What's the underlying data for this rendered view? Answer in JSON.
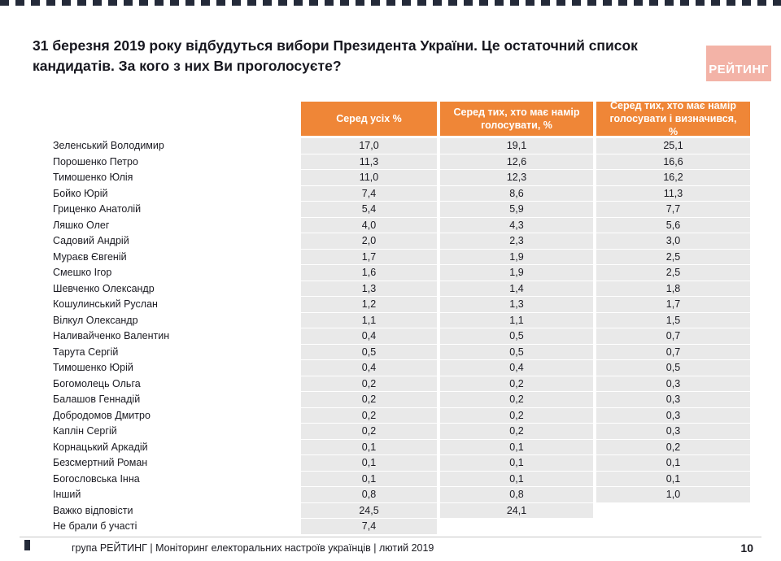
{
  "page": {
    "title": "31 березня 2019 року відбудуться вибори Президента України. Це остаточний список кандидатів. За кого з них Ви проголосуєте?",
    "logo": "РЕЙТИНГ",
    "footer_text": "група РЕЙТИНГ |  Моніторинг електоральних настроїв українців | лютий  2019",
    "page_number": "10"
  },
  "colors": {
    "accent_orange": "#ef8637",
    "logo_pink": "#f3b3a7",
    "row_gray": "#e9e9e9",
    "border_dark": "#242a39"
  },
  "chart_data": {
    "type": "table",
    "title": "31 березня 2019 року відбудуться вибори Президента України. Це остаточний список кандидатів. За кого з них Ви проголосуєте?",
    "columns": [
      "Серед усіх %",
      "Серед тих, хто має намір голосувати, %",
      "Серед тих, хто має намір голосувати і визначився, %"
    ],
    "rows": [
      {
        "name": "Зеленський Володимир",
        "values": [
          "17,0",
          "19,1",
          "25,1"
        ]
      },
      {
        "name": "Порошенко Петро",
        "values": [
          "11,3",
          "12,6",
          "16,6"
        ]
      },
      {
        "name": "Тимошенко Юлія",
        "values": [
          "11,0",
          "12,3",
          "16,2"
        ]
      },
      {
        "name": "Бойко Юрій",
        "values": [
          "7,4",
          "8,6",
          "11,3"
        ]
      },
      {
        "name": "Гриценко Анатолій",
        "values": [
          "5,4",
          "5,9",
          "7,7"
        ]
      },
      {
        "name": "Ляшко Олег",
        "values": [
          "4,0",
          "4,3",
          "5,6"
        ]
      },
      {
        "name": "Садовий Андрій",
        "values": [
          "2,0",
          "2,3",
          "3,0"
        ]
      },
      {
        "name": "Мураєв Євгеній",
        "values": [
          "1,7",
          "1,9",
          "2,5"
        ]
      },
      {
        "name": "Смешко Ігор",
        "values": [
          "1,6",
          "1,9",
          "2,5"
        ]
      },
      {
        "name": "Шевченко Олександр",
        "values": [
          "1,3",
          "1,4",
          "1,8"
        ]
      },
      {
        "name": "Кошулинський Руслан",
        "values": [
          "1,2",
          "1,3",
          "1,7"
        ]
      },
      {
        "name": "Вілкул Олександр",
        "values": [
          "1,1",
          "1,1",
          "1,5"
        ]
      },
      {
        "name": "Наливайченко Валентин",
        "values": [
          "0,4",
          "0,5",
          "0,7"
        ]
      },
      {
        "name": "Тарута Сергій",
        "values": [
          "0,5",
          "0,5",
          "0,7"
        ]
      },
      {
        "name": "Тимошенко Юрій",
        "values": [
          "0,4",
          "0,4",
          "0,5"
        ]
      },
      {
        "name": "Богомолець Ольга",
        "values": [
          "0,2",
          "0,2",
          "0,3"
        ]
      },
      {
        "name": "Балашов Геннадій",
        "values": [
          "0,2",
          "0,2",
          "0,3"
        ]
      },
      {
        "name": "Добродомов Дмитро",
        "values": [
          "0,2",
          "0,2",
          "0,3"
        ]
      },
      {
        "name": "Каплін Сергій",
        "values": [
          "0,2",
          "0,2",
          "0,3"
        ]
      },
      {
        "name": "Корнацький Аркадій",
        "values": [
          "0,1",
          "0,1",
          "0,2"
        ]
      },
      {
        "name": "Безсмертний Роман",
        "values": [
          "0,1",
          "0,1",
          "0,1"
        ]
      },
      {
        "name": "Богословська Інна",
        "values": [
          "0,1",
          "0,1",
          "0,1"
        ]
      },
      {
        "name": "Інший",
        "values": [
          "0,8",
          "0,8",
          "1,0"
        ]
      },
      {
        "name": "Важко відповісти",
        "values": [
          "24,5",
          "24,1",
          ""
        ]
      },
      {
        "name": "Не брали б участі",
        "values": [
          "7,4",
          "",
          ""
        ]
      }
    ]
  }
}
